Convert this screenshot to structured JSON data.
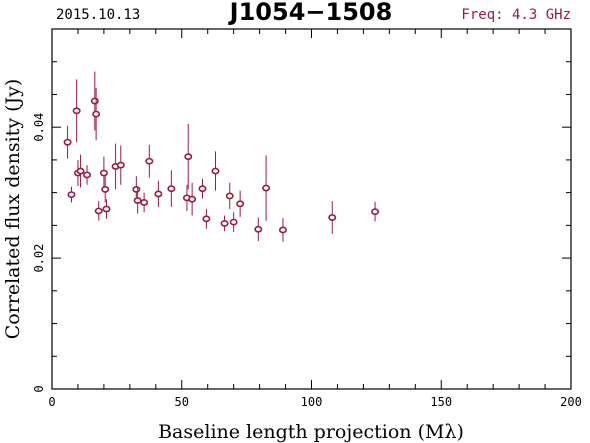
{
  "header": {
    "date": "2015.10.13",
    "source": "J1054−1508",
    "freq": "Freq: 4.3 GHz"
  },
  "colors": {
    "points": "#9b1b3c",
    "axes": "#000000"
  },
  "chart_data": {
    "type": "scatter",
    "title": "J1054−1508",
    "xlabel": "Baseline length projection (Mλ)",
    "ylabel": "Correlated flux density (Jy)",
    "xlim": [
      0,
      200
    ],
    "ylim": [
      0,
      0.055
    ],
    "xticks": [
      0,
      50,
      100,
      150,
      200
    ],
    "xtick_labels": [
      "0",
      "50",
      "100",
      "150",
      "200"
    ],
    "yticks": [
      0,
      0.02,
      0.04
    ],
    "ytick_labels": [
      "0",
      "0.02",
      "0.04"
    ],
    "grid": false,
    "series": [
      {
        "points": [
          {
            "x": 6.0,
            "y": 0.0377,
            "err": 0.0025
          },
          {
            "x": 7.5,
            "y": 0.0297,
            "err": 0.0012
          },
          {
            "x": 9.5,
            "y": 0.0425,
            "err": 0.0048
          },
          {
            "x": 10.0,
            "y": 0.033,
            "err": 0.002
          },
          {
            "x": 11.0,
            "y": 0.0333,
            "err": 0.0025
          },
          {
            "x": 13.5,
            "y": 0.0327,
            "err": 0.0015
          },
          {
            "x": 16.5,
            "y": 0.044,
            "err": 0.0045
          },
          {
            "x": 17.0,
            "y": 0.042,
            "err": 0.004
          },
          {
            "x": 18.0,
            "y": 0.0272,
            "err": 0.0015
          },
          {
            "x": 20.0,
            "y": 0.033,
            "err": 0.0025
          },
          {
            "x": 20.5,
            "y": 0.0305,
            "err": 0.002
          },
          {
            "x": 21.0,
            "y": 0.0275,
            "err": 0.0015
          },
          {
            "x": 24.5,
            "y": 0.034,
            "err": 0.0035
          },
          {
            "x": 26.5,
            "y": 0.0342,
            "err": 0.003
          },
          {
            "x": 32.5,
            "y": 0.0305,
            "err": 0.002
          },
          {
            "x": 33.0,
            "y": 0.0288,
            "err": 0.002
          },
          {
            "x": 35.5,
            "y": 0.0285,
            "err": 0.0015
          },
          {
            "x": 37.5,
            "y": 0.0348,
            "err": 0.0025
          },
          {
            "x": 41.0,
            "y": 0.0298,
            "err": 0.002
          },
          {
            "x": 46.0,
            "y": 0.0306,
            "err": 0.0028
          },
          {
            "x": 52.0,
            "y": 0.0292,
            "err": 0.002
          },
          {
            "x": 52.5,
            "y": 0.0355,
            "err": 0.005
          },
          {
            "x": 54.0,
            "y": 0.029,
            "err": 0.0025
          },
          {
            "x": 58.0,
            "y": 0.0306,
            "err": 0.0015
          },
          {
            "x": 59.5,
            "y": 0.026,
            "err": 0.0015
          },
          {
            "x": 63.0,
            "y": 0.0333,
            "err": 0.003
          },
          {
            "x": 66.5,
            "y": 0.0253,
            "err": 0.0012
          },
          {
            "x": 68.5,
            "y": 0.0295,
            "err": 0.002
          },
          {
            "x": 70.0,
            "y": 0.0255,
            "err": 0.0015
          },
          {
            "x": 72.5,
            "y": 0.0283,
            "err": 0.002
          },
          {
            "x": 79.5,
            "y": 0.0244,
            "err": 0.0018
          },
          {
            "x": 82.5,
            "y": 0.0307,
            "err": 0.005
          },
          {
            "x": 89.0,
            "y": 0.0243,
            "err": 0.0018
          },
          {
            "x": 108.0,
            "y": 0.0262,
            "err": 0.0025
          },
          {
            "x": 124.5,
            "y": 0.0271,
            "err": 0.0015
          }
        ]
      }
    ]
  }
}
